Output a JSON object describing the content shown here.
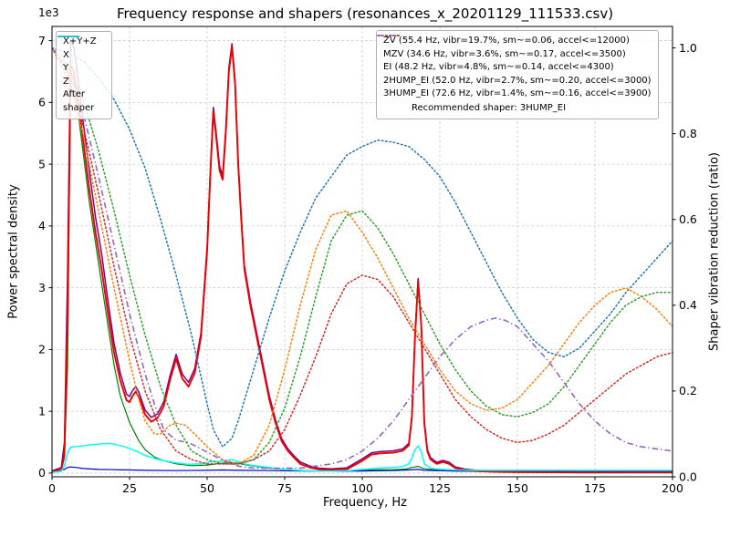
{
  "accent_colors": {
    "grid": "#c9c9c9",
    "spine": "#000000",
    "background": "#ffffff"
  },
  "legend_left": {
    "entries": [
      {
        "series": "X+Y+Z",
        "label": "X+Y+Z"
      },
      {
        "series": "X",
        "label": "X"
      },
      {
        "series": "Y",
        "label": "Y"
      },
      {
        "series": "Z",
        "label": "Z"
      },
      {
        "series": "After shaper",
        "label": "After shaper"
      }
    ]
  },
  "legend_right": {
    "entries": [
      {
        "series": "ZV",
        "label": "ZV (55.4 Hz, vibr=19.7%, sm~=0.06, accel<=12000)"
      },
      {
        "series": "MZV",
        "label": "MZV (34.6 Hz, vibr=3.6%, sm~=0.17, accel<=3500)"
      },
      {
        "series": "EI",
        "label": "EI (48.2 Hz, vibr=4.8%, sm~=0.14, accel<=4300)"
      },
      {
        "series": "2HUMP_EI",
        "label": "2HUMP_EI (52.0 Hz, vibr=2.7%, sm~=0.20, accel<=3000)"
      },
      {
        "series": "3HUMP_EI",
        "label": "3HUMP_EI (72.6 Hz, vibr=1.4%, sm~=0.16, accel<=3900)"
      }
    ],
    "note": "Recommended shaper: 3HUMP_EI"
  },
  "chart_data": {
    "type": "line",
    "title": "Frequency response and shapers (resonances_x_20201129_111533.csv)",
    "xlabel": "Frequency, Hz",
    "ylabel_left": "Power spectral density",
    "ylabel_right": "Shaper vibration reduction (ratio)",
    "y_left_offset_text": "1e3",
    "x_range": [
      0,
      200
    ],
    "x_ticks": [
      0,
      25,
      50,
      75,
      100,
      125,
      150,
      175,
      200
    ],
    "x_tick_labels": [
      "0",
      "25",
      "50",
      "75",
      "100",
      "125",
      "150",
      "175",
      "200"
    ],
    "y_left_domain": [
      -60,
      7230
    ],
    "y_left_ticks": [
      0,
      1000,
      2000,
      3000,
      4000,
      5000,
      6000,
      7000
    ],
    "y_left_tick_labels": [
      "0",
      "1",
      "2",
      "3",
      "4",
      "5",
      "6",
      "7"
    ],
    "y_right_domain": [
      0,
      1.05
    ],
    "y_right_ticks": [
      0,
      0.2,
      0.4,
      0.6,
      0.8,
      1.0
    ],
    "y_right_tick_labels": [
      "0.0",
      "0.2",
      "0.4",
      "0.6",
      "0.8",
      "1.0"
    ],
    "grid": true,
    "series": [
      {
        "name": "X+Y+Z",
        "axis": "left",
        "color": "#800080",
        "style": "solid",
        "width": 1.5,
        "x": [
          0,
          3,
          4,
          5,
          6,
          7,
          8,
          10,
          12,
          14,
          16,
          18,
          20,
          22,
          24,
          25,
          26,
          27,
          28,
          30,
          32,
          34,
          36,
          38,
          40,
          42,
          44,
          46,
          48,
          50,
          51,
          52,
          53,
          54,
          55,
          56,
          57,
          58,
          59,
          60,
          61,
          62,
          64,
          66,
          68,
          70,
          72,
          74,
          76,
          78,
          80,
          83,
          86,
          90,
          95,
          100,
          103,
          106,
          110,
          113,
          115,
          116,
          117,
          118,
          119,
          120,
          121,
          122,
          124,
          126,
          128,
          130,
          133,
          136,
          140,
          145,
          150,
          160,
          170,
          180,
          190,
          200
        ],
        "y": [
          35,
          90,
          500,
          3200,
          7000,
          6900,
          6550,
          5700,
          4900,
          4150,
          3550,
          2800,
          2100,
          1620,
          1280,
          1240,
          1340,
          1400,
          1310,
          1020,
          900,
          960,
          1150,
          1570,
          1920,
          1600,
          1470,
          1690,
          2270,
          3670,
          4870,
          5920,
          5470,
          4970,
          4820,
          5570,
          6560,
          6950,
          6360,
          5060,
          4160,
          3360,
          2760,
          2260,
          1760,
          1260,
          870,
          560,
          395,
          280,
          180,
          115,
          80,
          70,
          85,
          230,
          330,
          350,
          360,
          390,
          480,
          940,
          2250,
          3150,
          2450,
          840,
          380,
          250,
          175,
          205,
          175,
          100,
          65,
          50,
          40,
          30,
          25,
          20,
          18,
          18,
          18,
          18
        ]
      },
      {
        "name": "Y",
        "axis": "left",
        "color": "#008000",
        "style": "solid",
        "width": 1.2,
        "x": [
          0,
          3,
          4,
          5,
          6,
          7,
          8,
          10,
          12,
          15,
          18,
          20,
          22,
          25,
          28,
          30,
          33,
          36,
          40,
          45,
          50,
          53,
          55,
          57,
          60,
          63,
          66,
          70,
          75,
          80,
          85,
          90,
          95,
          100,
          105,
          110,
          114,
          116,
          118,
          120,
          125,
          130,
          140,
          150,
          160,
          170,
          180,
          190,
          200
        ],
        "y": [
          25,
          50,
          250,
          1700,
          6500,
          6350,
          6000,
          5200,
          4400,
          3400,
          2400,
          1750,
          1250,
          820,
          520,
          380,
          260,
          200,
          150,
          120,
          130,
          150,
          160,
          170,
          160,
          130,
          105,
          80,
          60,
          45,
          35,
          30,
          35,
          45,
          55,
          55,
          65,
          90,
          110,
          70,
          45,
          35,
          22,
          16,
          12,
          10,
          10,
          10,
          10
        ]
      },
      {
        "name": "Z",
        "axis": "left",
        "color": "#0000cd",
        "style": "solid",
        "width": 1.2,
        "x": [
          0,
          4,
          5,
          6,
          8,
          10,
          15,
          20,
          25,
          30,
          40,
          50,
          55,
          60,
          70,
          80,
          90,
          100,
          110,
          115,
          118,
          120,
          130,
          150,
          170,
          200
        ],
        "y": [
          30,
          60,
          90,
          100,
          90,
          75,
          60,
          55,
          50,
          45,
          40,
          45,
          50,
          45,
          40,
          35,
          30,
          35,
          40,
          50,
          60,
          45,
          35,
          30,
          25,
          25
        ]
      },
      {
        "name": "X",
        "axis": "left",
        "color": "#ee0000",
        "style": "solid",
        "width": 1.9,
        "x": [
          0,
          3,
          4,
          5,
          6,
          7,
          8,
          10,
          12,
          14,
          16,
          18,
          20,
          22,
          24,
          25,
          26,
          27,
          28,
          30,
          32,
          34,
          36,
          38,
          40,
          42,
          44,
          46,
          48,
          50,
          51,
          52,
          53,
          54,
          55,
          56,
          57,
          58,
          59,
          60,
          61,
          62,
          64,
          66,
          68,
          70,
          72,
          74,
          76,
          78,
          80,
          83,
          86,
          90,
          95,
          100,
          103,
          106,
          110,
          113,
          115,
          116,
          117,
          118,
          119,
          120,
          121,
          122,
          124,
          126,
          128,
          130,
          133,
          136,
          140,
          145,
          150,
          160,
          170,
          180,
          190,
          200
        ],
        "y": [
          20,
          60,
          300,
          2500,
          6600,
          6500,
          6200,
          5400,
          4600,
          3900,
          3300,
          2600,
          1950,
          1500,
          1180,
          1150,
          1250,
          1320,
          1230,
          950,
          830,
          890,
          1080,
          1500,
          1850,
          1530,
          1400,
          1620,
          2200,
          3600,
          4800,
          5850,
          5400,
          4900,
          4750,
          5500,
          6500,
          6900,
          6300,
          5000,
          4100,
          3300,
          2700,
          2200,
          1700,
          1200,
          820,
          520,
          360,
          250,
          150,
          90,
          60,
          50,
          60,
          200,
          300,
          320,
          330,
          360,
          450,
          900,
          2200,
          3100,
          2400,
          800,
          350,
          220,
          150,
          180,
          150,
          80,
          50,
          35,
          25,
          18,
          15,
          12,
          10,
          10,
          10,
          10
        ]
      },
      {
        "name": "After shaper",
        "axis": "left",
        "color": "#00ffff",
        "style": "solid",
        "width": 1.5,
        "x": [
          0,
          3,
          4,
          5,
          6,
          8,
          10,
          12,
          15,
          18,
          20,
          22,
          25,
          28,
          30,
          33,
          36,
          40,
          44,
          48,
          50,
          52,
          54,
          56,
          58,
          60,
          62,
          65,
          70,
          75,
          80,
          85,
          90,
          95,
          100,
          105,
          110,
          113,
          115,
          116,
          117,
          118,
          119,
          120,
          122,
          125,
          130,
          140,
          150,
          160,
          170,
          180,
          190,
          200
        ],
        "y": [
          10,
          30,
          120,
          330,
          420,
          430,
          440,
          455,
          470,
          480,
          470,
          445,
          400,
          335,
          285,
          235,
          200,
          165,
          140,
          150,
          170,
          190,
          185,
          205,
          215,
          185,
          150,
          120,
          90,
          60,
          42,
          32,
          32,
          38,
          60,
          80,
          92,
          105,
          150,
          250,
          380,
          440,
          350,
          150,
          80,
          62,
          50,
          45,
          45,
          45,
          45,
          45,
          45,
          45
        ]
      },
      {
        "name": "ZV",
        "axis": "right",
        "color": "#1f77b4",
        "style": "dotted",
        "width": 1.5,
        "x": [
          0,
          5,
          10,
          15,
          20,
          25,
          30,
          35,
          40,
          45,
          50,
          52,
          55,
          58,
          60,
          65,
          70,
          75,
          80,
          85,
          90,
          95,
          100,
          105,
          110,
          115,
          120,
          125,
          130,
          135,
          140,
          145,
          150,
          155,
          160,
          165,
          170,
          175,
          180,
          185,
          190,
          195,
          200
        ],
        "y": [
          1.0,
          0.99,
          0.97,
          0.93,
          0.88,
          0.81,
          0.72,
          0.6,
          0.47,
          0.33,
          0.17,
          0.11,
          0.07,
          0.09,
          0.13,
          0.25,
          0.37,
          0.48,
          0.57,
          0.65,
          0.7,
          0.75,
          0.77,
          0.785,
          0.78,
          0.77,
          0.74,
          0.7,
          0.64,
          0.57,
          0.5,
          0.43,
          0.37,
          0.32,
          0.29,
          0.28,
          0.3,
          0.34,
          0.38,
          0.43,
          0.47,
          0.51,
          0.55
        ]
      },
      {
        "name": "MZV",
        "axis": "right",
        "color": "#ff7f0e",
        "style": "dotted",
        "width": 1.5,
        "x": [
          0,
          5,
          10,
          15,
          20,
          25,
          28,
          30,
          33,
          35,
          38,
          40,
          43,
          46,
          50,
          55,
          60,
          65,
          70,
          75,
          80,
          85,
          90,
          95,
          100,
          105,
          110,
          115,
          120,
          125,
          130,
          135,
          140,
          145,
          150,
          155,
          160,
          165,
          170,
          175,
          180,
          185,
          190,
          195,
          200
        ],
        "y": [
          1.0,
          0.93,
          0.8,
          0.62,
          0.44,
          0.27,
          0.18,
          0.13,
          0.1,
          0.1,
          0.12,
          0.125,
          0.12,
          0.1,
          0.07,
          0.04,
          0.03,
          0.05,
          0.12,
          0.25,
          0.4,
          0.53,
          0.61,
          0.62,
          0.57,
          0.51,
          0.44,
          0.37,
          0.31,
          0.25,
          0.2,
          0.17,
          0.155,
          0.16,
          0.18,
          0.22,
          0.26,
          0.31,
          0.36,
          0.4,
          0.43,
          0.44,
          0.42,
          0.39,
          0.35
        ]
      },
      {
        "name": "EI",
        "axis": "right",
        "color": "#2ca02c",
        "style": "dotted",
        "width": 1.5,
        "x": [
          0,
          5,
          10,
          15,
          20,
          25,
          30,
          35,
          40,
          45,
          50,
          55,
          60,
          65,
          70,
          75,
          80,
          85,
          90,
          95,
          100,
          105,
          110,
          115,
          120,
          125,
          130,
          135,
          140,
          145,
          150,
          155,
          160,
          165,
          170,
          175,
          180,
          185,
          190,
          195,
          200
        ],
        "y": [
          1.0,
          0.96,
          0.88,
          0.76,
          0.62,
          0.47,
          0.33,
          0.21,
          0.12,
          0.06,
          0.04,
          0.03,
          0.03,
          0.04,
          0.08,
          0.16,
          0.28,
          0.42,
          0.55,
          0.61,
          0.62,
          0.58,
          0.52,
          0.45,
          0.38,
          0.31,
          0.25,
          0.2,
          0.165,
          0.145,
          0.14,
          0.15,
          0.17,
          0.21,
          0.26,
          0.31,
          0.36,
          0.4,
          0.42,
          0.43,
          0.43
        ]
      },
      {
        "name": "2HUMP_EI",
        "axis": "right",
        "color": "#d62728",
        "style": "dotted",
        "width": 1.5,
        "x": [
          0,
          5,
          10,
          15,
          20,
          25,
          30,
          35,
          40,
          45,
          50,
          55,
          60,
          65,
          70,
          75,
          80,
          85,
          90,
          95,
          100,
          105,
          110,
          115,
          120,
          125,
          130,
          135,
          140,
          145,
          150,
          155,
          160,
          165,
          170,
          175,
          180,
          185,
          190,
          195,
          200
        ],
        "y": [
          1.0,
          0.94,
          0.82,
          0.66,
          0.49,
          0.33,
          0.2,
          0.11,
          0.06,
          0.04,
          0.03,
          0.03,
          0.03,
          0.04,
          0.06,
          0.11,
          0.19,
          0.28,
          0.38,
          0.45,
          0.47,
          0.46,
          0.42,
          0.36,
          0.3,
          0.24,
          0.18,
          0.14,
          0.11,
          0.09,
          0.08,
          0.085,
          0.1,
          0.12,
          0.15,
          0.18,
          0.21,
          0.24,
          0.26,
          0.28,
          0.29
        ]
      },
      {
        "name": "3HUMP_EI",
        "axis": "right",
        "color": "#9467bd",
        "style": "dashdot",
        "width": 1.6,
        "x": [
          0,
          5,
          10,
          15,
          20,
          25,
          30,
          33,
          36,
          40,
          44,
          48,
          52,
          56,
          60,
          65,
          70,
          75,
          80,
          85,
          90,
          95,
          100,
          105,
          110,
          115,
          120,
          125,
          130,
          135,
          140,
          143,
          146,
          150,
          155,
          160,
          165,
          170,
          175,
          180,
          185,
          190,
          195,
          200
        ],
        "y": [
          1.0,
          0.95,
          0.85,
          0.7,
          0.54,
          0.38,
          0.24,
          0.17,
          0.11,
          0.085,
          0.08,
          0.065,
          0.05,
          0.035,
          0.025,
          0.02,
          0.02,
          0.02,
          0.02,
          0.025,
          0.03,
          0.04,
          0.06,
          0.09,
          0.13,
          0.18,
          0.23,
          0.28,
          0.32,
          0.35,
          0.365,
          0.37,
          0.365,
          0.35,
          0.31,
          0.27,
          0.22,
          0.17,
          0.13,
          0.1,
          0.08,
          0.07,
          0.065,
          0.06
        ]
      }
    ]
  }
}
